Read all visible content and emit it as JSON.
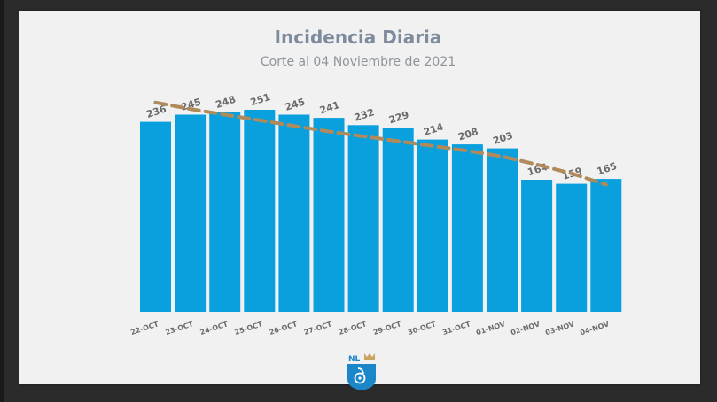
{
  "header": {
    "title": "Incidencia Diaria",
    "subtitle": "Corte al 04 Noviembre de 2021"
  },
  "colors": {
    "bar": "#0a9fdd",
    "trend": "#b08a5a",
    "label": "#6b6b6b",
    "background": "#f1f1f1"
  },
  "logo": {
    "text": "NL",
    "icon": "nuevo-leon-shield-icon"
  },
  "chart_data": {
    "type": "bar",
    "title": "Incidencia Diaria",
    "subtitle": "Corte al 04 Noviembre de 2021",
    "categories": [
      "22-OCT",
      "23-OCT",
      "24-OCT",
      "25-OCT",
      "26-OCT",
      "27-OCT",
      "28-OCT",
      "29-OCT",
      "30-OCT",
      "31-OCT",
      "01-NOV",
      "02-NOV",
      "03-NOV",
      "04-NOV"
    ],
    "values": [
      236,
      245,
      248,
      251,
      245,
      241,
      232,
      229,
      214,
      208,
      203,
      164,
      159,
      165
    ],
    "value_labels": [
      "236",
      "245",
      "248",
      "251",
      "245",
      "241",
      "232",
      "229",
      "214",
      "208",
      "203",
      "164",
      "159",
      "165"
    ],
    "trend": {
      "style": "dashed",
      "values": [
        260,
        252,
        245,
        238,
        231,
        224,
        218,
        212,
        206,
        200,
        193,
        183,
        172,
        158
      ]
    },
    "xlabel": "",
    "ylabel": "",
    "ylim": [
      0,
      251
    ],
    "grid": false,
    "legend": "none"
  }
}
